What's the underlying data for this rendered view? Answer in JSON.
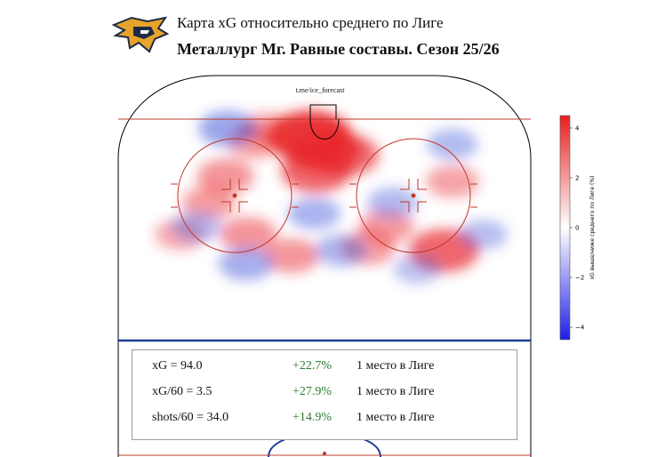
{
  "title": "Карта xG относительно среднего по Лиге",
  "subtitle": "Металлург Мг. Равные составы. Сезон 25/26",
  "watermark": "t.me/ice_forecast",
  "stats": [
    {
      "label": "xG = 94.0",
      "delta": "+22.7%",
      "rank": "1 место в Лиге"
    },
    {
      "label": "xG/60 = 3.5",
      "delta": "+27.9%",
      "rank": "1 место в Лиге"
    },
    {
      "label": "shots/60 = 34.0",
      "delta": "+14.9%",
      "rank": "1 место в Лиге"
    }
  ],
  "colors": {
    "positive": "#e8262a",
    "negative": "#3a4fd8",
    "delta_text": "#2e7d32",
    "rink_line": "#c0392b",
    "blue_line": "#1f3a93"
  },
  "chart_data": {
    "type": "heatmap",
    "colorbar": {
      "label": "xG выше/ниже среднего по Лиге (%)",
      "ticks": [
        -4,
        -2,
        0,
        2,
        4
      ],
      "range": [
        -4.5,
        4.5
      ],
      "cmap": "bwr"
    },
    "hotspots": [
      {
        "x": -7,
        "y": 77,
        "value": 4.2
      },
      {
        "x": 0,
        "y": 72,
        "value": 3.2
      },
      {
        "x": -4,
        "y": 64,
        "value": 2.8
      },
      {
        "x": 10,
        "y": 70,
        "value": 2.6
      },
      {
        "x": -34,
        "y": 75,
        "value": 1.2
      },
      {
        "x": -48,
        "y": 62,
        "value": 1.5
      },
      {
        "x": -56,
        "y": 52,
        "value": 1.2
      },
      {
        "x": 58,
        "y": 34,
        "value": 2.8
      },
      {
        "x": 30,
        "y": 43,
        "value": 1.3
      },
      {
        "x": -37,
        "y": 40,
        "value": 1.5
      },
      {
        "x": -16,
        "y": 32,
        "value": 1.4
      },
      {
        "x": 21,
        "y": 35,
        "value": 1.3
      },
      {
        "x": 62,
        "y": 60,
        "value": 1.1
      },
      {
        "x": -70,
        "y": 40,
        "value": 0.9
      },
      {
        "x": -28,
        "y": 80,
        "value": 1.0
      },
      {
        "x": -47,
        "y": 80,
        "value": -1.6
      },
      {
        "x": -5,
        "y": 48,
        "value": -1.1
      },
      {
        "x": 33,
        "y": 52,
        "value": -0.9
      },
      {
        "x": 8,
        "y": 34,
        "value": -1.0
      },
      {
        "x": -38,
        "y": 29,
        "value": -1.3
      },
      {
        "x": 62,
        "y": 74,
        "value": -0.9
      },
      {
        "x": -62,
        "y": 43,
        "value": -0.8
      },
      {
        "x": 77,
        "y": 40,
        "value": -0.7
      },
      {
        "x": 45,
        "y": 27,
        "value": -0.6
      }
    ]
  }
}
